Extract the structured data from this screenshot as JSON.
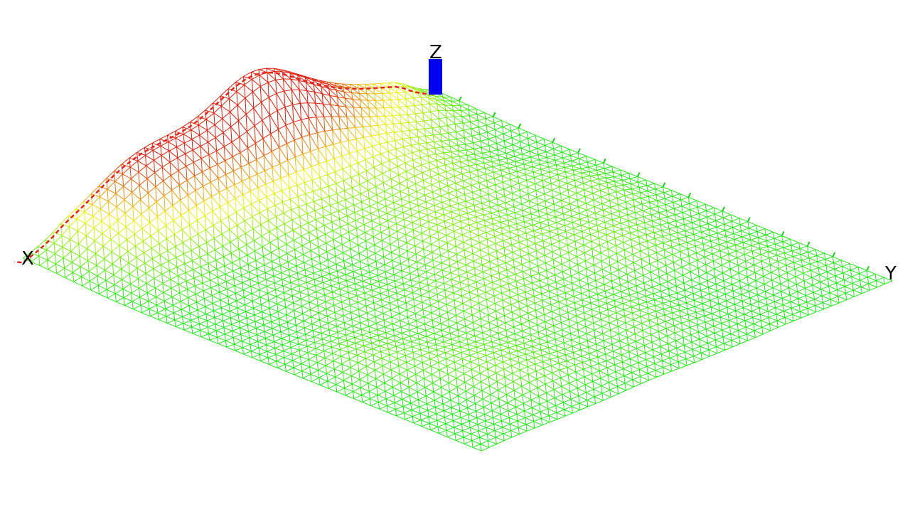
{
  "axes": {
    "x_label": "X",
    "y_label": "Y",
    "z_label": "Z"
  },
  "colors": {
    "background": "#ffffff",
    "mesh_low": "#22e81e",
    "mesh_mid": "#f2f214",
    "mesh_high": "#e01e0e",
    "x_axis": "#e3251b",
    "z_axis": "#0000ee",
    "tick": "#1bd01b"
  }
}
